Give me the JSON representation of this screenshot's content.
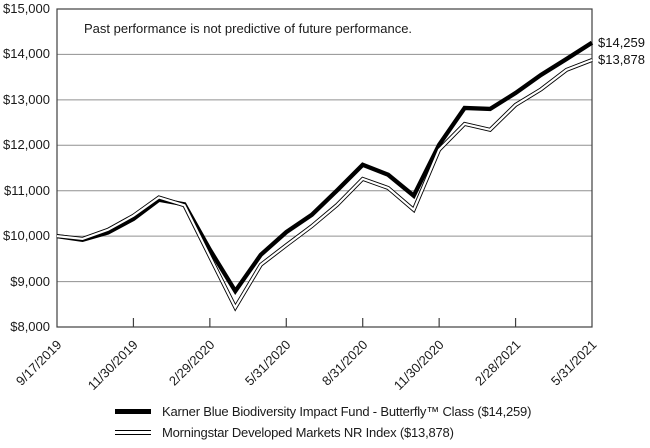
{
  "colors": {
    "line": "#000000",
    "series_inner": "#ffffff",
    "grid": "#909090",
    "axis": "#404040",
    "text": "#1a1a1a",
    "background": "#ffffff"
  },
  "chart_data": {
    "type": "line",
    "title": "",
    "annotation": "Past performance is not predictive of future performance.",
    "grid": "horizontal",
    "legend_position": "bottom",
    "ylim": [
      8000,
      15000
    ],
    "yticks": [
      {
        "value": 15000,
        "label": "$15,000"
      },
      {
        "value": 14000,
        "label": "$14,000"
      },
      {
        "value": 13000,
        "label": "$13,000"
      },
      {
        "value": 12000,
        "label": "$12,000"
      },
      {
        "value": 11000,
        "label": "$11,000"
      },
      {
        "value": 10000,
        "label": "$10,000"
      },
      {
        "value": 9000,
        "label": "$9,000"
      },
      {
        "value": 8000,
        "label": "$8,000"
      }
    ],
    "x": [
      "9/17/2019",
      "9/30/2019",
      "10/31/2019",
      "11/30/2019",
      "12/31/2019",
      "1/31/2020",
      "2/29/2020",
      "3/31/2020",
      "4/30/2020",
      "5/31/2020",
      "6/30/2020",
      "7/31/2020",
      "8/31/2020",
      "9/30/2020",
      "10/31/2020",
      "11/30/2020",
      "12/31/2020",
      "1/31/2021",
      "2/28/2021",
      "3/31/2021",
      "4/30/2021",
      "5/31/2021"
    ],
    "xticks": [
      {
        "index": 0,
        "label": "9/17/2019"
      },
      {
        "index": 3,
        "label": "11/30/2019"
      },
      {
        "index": 6,
        "label": "2/29/2020"
      },
      {
        "index": 9,
        "label": "5/31/2020"
      },
      {
        "index": 12,
        "label": "8/31/2020"
      },
      {
        "index": 15,
        "label": "11/30/2020"
      },
      {
        "index": 18,
        "label": "2/28/2021"
      },
      {
        "index": 21,
        "label": "5/31/2021"
      }
    ],
    "series": [
      {
        "name": "Karner Blue Biodiversity Impact Fund - Butterfly™ Class ($14,259)",
        "style": "thick-solid",
        "end_label": "$14,259",
        "values": [
          10000,
          9920,
          10080,
          10380,
          10800,
          10700,
          9700,
          8790,
          9590,
          10090,
          10470,
          11010,
          11570,
          11350,
          10890,
          12010,
          12820,
          12800,
          13150,
          13550,
          13900,
          14259
        ]
      },
      {
        "name": "Morningstar Developed Markets NR Index ($13,878)",
        "style": "double-line",
        "end_label": "$13,878",
        "values": [
          10000,
          9940,
          10140,
          10450,
          10850,
          10680,
          9550,
          8430,
          9370,
          9800,
          10220,
          10690,
          11260,
          11060,
          10580,
          11900,
          12470,
          12340,
          12890,
          13230,
          13660,
          13878
        ]
      }
    ]
  }
}
